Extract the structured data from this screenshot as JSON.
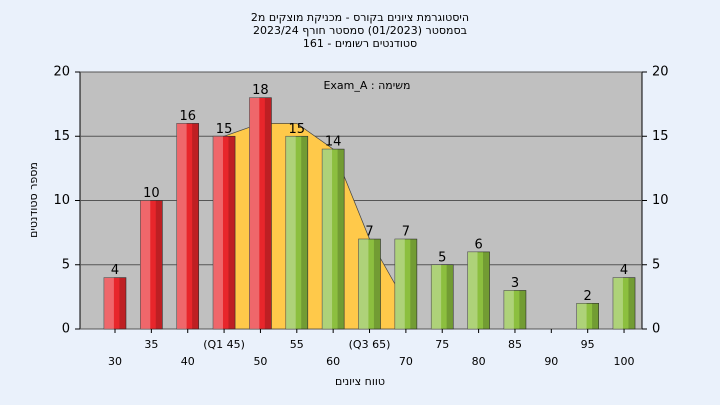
{
  "chart_data": {
    "type": "bar",
    "title": [
      "היסטוגרמת ציונים בקורס - מכניקת מוצקים מ2",
      "בסמסטר (01/2023) סמסטר חורף 2023/24",
      "סטודנטים רשומים - 161"
    ],
    "annotation": "משימה : Exam_A",
    "x_label": "טווח ציונים",
    "y_label": "מספר סטודנטים",
    "categories": [
      "30",
      "35",
      "40",
      "(Q1 45)",
      "50",
      "55",
      "60",
      "(Q3 65)",
      "70",
      "75",
      "80",
      "85",
      "90",
      "95",
      "100"
    ],
    "values": [
      4,
      10,
      16,
      15,
      18,
      15,
      14,
      7,
      7,
      5,
      6,
      3,
      null,
      2,
      4
    ],
    "colors": [
      "#e8262b",
      "#e8262b",
      "#e8262b",
      "#e8262b",
      "#e8262b",
      "#8cbf3f",
      "#8cbf3f",
      "#8cbf3f",
      "#8cbf3f",
      "#8cbf3f",
      "#8cbf3f",
      "#8cbf3f",
      "#8cbf3f",
      "#8cbf3f",
      "#8cbf3f"
    ],
    "area_values": [
      null,
      null,
      null,
      15,
      16,
      16,
      14,
      7,
      2,
      null,
      null,
      null,
      null,
      null,
      null
    ],
    "area_color": "#ffc94a",
    "ylim": [
      0,
      20
    ],
    "yticks": [
      0,
      5,
      10,
      15,
      20
    ],
    "grid": true
  }
}
